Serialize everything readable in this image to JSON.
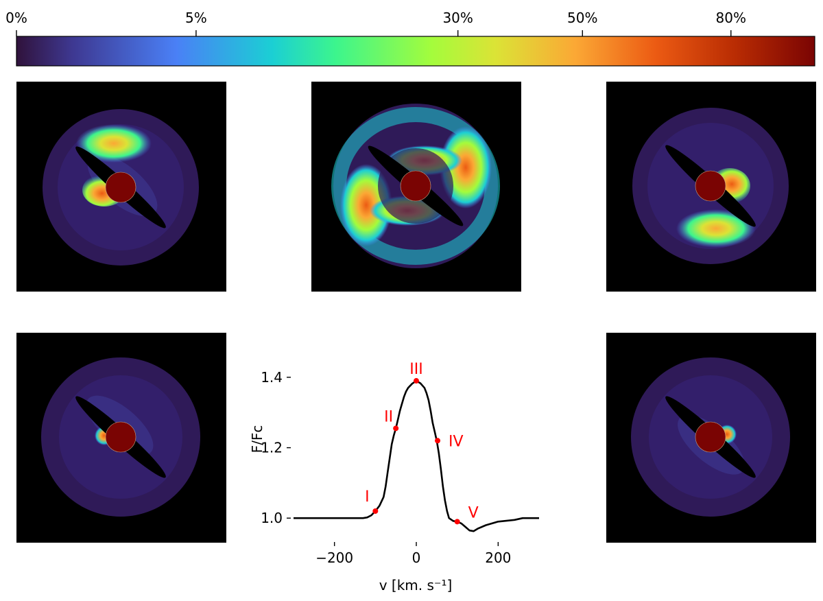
{
  "colorbar": {
    "tick_labels": [
      "0%",
      "5%",
      "30%",
      "50%",
      "80%"
    ],
    "tick_fractions": [
      0.0,
      0.225,
      0.553,
      0.709,
      0.895
    ],
    "stops": [
      {
        "offset": 0.0,
        "color": "#30123b"
      },
      {
        "offset": 0.07,
        "color": "#3e3891"
      },
      {
        "offset": 0.2,
        "color": "#4a80f6"
      },
      {
        "offset": 0.32,
        "color": "#1bcfd4"
      },
      {
        "offset": 0.4,
        "color": "#3cf58d"
      },
      {
        "offset": 0.52,
        "color": "#a4fc3c"
      },
      {
        "offset": 0.6,
        "color": "#dbe336"
      },
      {
        "offset": 0.7,
        "color": "#fba835"
      },
      {
        "offset": 0.8,
        "color": "#ec5b13"
      },
      {
        "offset": 0.9,
        "color": "#b92c03"
      },
      {
        "offset": 1.0,
        "color": "#7a0403"
      }
    ]
  },
  "panels": [
    {
      "name": "panel-I",
      "phase": "I"
    },
    {
      "name": "panel-II",
      "phase": "II"
    },
    {
      "name": "panel-III",
      "phase": "III"
    },
    {
      "name": "panel-IV",
      "phase": "IV"
    },
    {
      "name": "panel-V",
      "phase": "V"
    }
  ],
  "colors": {
    "star": "#7a0403",
    "background": "#000000",
    "disk_outer": "#2f1a58",
    "curve": "#000000",
    "markers": "#ff0000"
  },
  "chart_data": {
    "type": "line",
    "xlabel": "v [km. s⁻¹]",
    "ylabel": "F/Fc",
    "xlim": [
      -300,
      300
    ],
    "ylim": [
      0.94,
      1.47
    ],
    "xticks": [
      -200,
      0,
      200
    ],
    "xtick_labels": [
      "−200",
      "0",
      "200"
    ],
    "yticks": [
      1.0,
      1.2,
      1.4
    ],
    "ytick_labels": [
      "1.0",
      "1.2",
      "1.4"
    ],
    "series": [
      {
        "name": "profile",
        "x": [
          -300,
          -250,
          -200,
          -150,
          -130,
          -120,
          -110,
          -100,
          -90,
          -80,
          -75,
          -70,
          -65,
          -60,
          -55,
          -50,
          -45,
          -40,
          -35,
          -30,
          -25,
          -20,
          -10,
          0,
          10,
          20,
          25,
          30,
          35,
          40,
          45,
          50,
          55,
          60,
          65,
          70,
          75,
          80,
          90,
          100,
          110,
          120,
          130,
          140,
          150,
          170,
          200,
          240,
          260,
          280,
          300
        ],
        "y": [
          1.0,
          1.0,
          1.0,
          1.0,
          1.0,
          1.002,
          1.008,
          1.02,
          1.035,
          1.06,
          1.09,
          1.13,
          1.17,
          1.21,
          1.235,
          1.255,
          1.28,
          1.305,
          1.325,
          1.345,
          1.36,
          1.37,
          1.382,
          1.39,
          1.383,
          1.37,
          1.355,
          1.335,
          1.305,
          1.27,
          1.245,
          1.22,
          1.185,
          1.14,
          1.09,
          1.05,
          1.02,
          1.0,
          0.992,
          0.99,
          0.985,
          0.975,
          0.965,
          0.963,
          0.97,
          0.98,
          0.99,
          0.995,
          1.0,
          1.0,
          1.0
        ]
      }
    ],
    "markers": [
      {
        "label": "I",
        "x": -100,
        "y": 1.02
      },
      {
        "label": "II",
        "x": -50,
        "y": 1.255
      },
      {
        "label": "III",
        "x": 0,
        "y": 1.39
      },
      {
        "label": "IV",
        "x": 52,
        "y": 1.22
      },
      {
        "label": "V",
        "x": 100,
        "y": 0.99
      }
    ]
  }
}
